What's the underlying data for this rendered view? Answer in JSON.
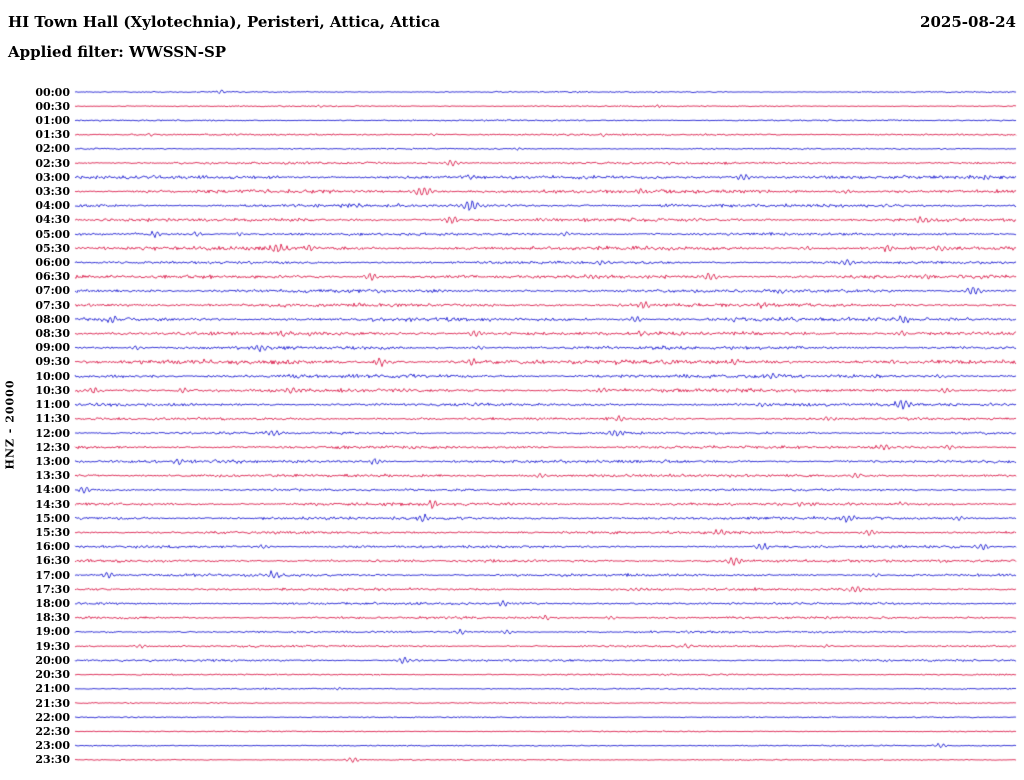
{
  "header": {
    "title": "HI Town Hall (Xylotechnia), Peristeri, Attica, Attica",
    "date": "2025-08-24",
    "filter": "Applied filter: WWSSN-SP"
  },
  "y_axis_label": "HNZ - 20000",
  "chart_data": {
    "type": "line",
    "subtype": "helicorder-seismogram",
    "title": "HI Town Hall (Xylotechnia), Peristeri, Attica, Attica",
    "date": "2025-08-24",
    "applied_filter": "WWSSN-SP",
    "station_channel": "HNZ",
    "scale": 20000,
    "row_interval_minutes": 30,
    "rows_count": 48,
    "grid": false,
    "background": "#ffffff",
    "trace_colors": {
      "blue": "#0000cc",
      "red": "#d60036"
    },
    "rows": [
      {
        "time": "00:00",
        "color": "blue",
        "noise": 0.5,
        "events": [
          [
            0.155,
            1.8,
            3
          ]
        ]
      },
      {
        "time": "00:30",
        "color": "red",
        "noise": 0.5,
        "events": [
          [
            0.26,
            1.4,
            3
          ],
          [
            0.62,
            1.2,
            3
          ]
        ]
      },
      {
        "time": "01:00",
        "color": "blue",
        "noise": 0.55,
        "events": []
      },
      {
        "time": "01:30",
        "color": "red",
        "noise": 0.7,
        "events": [
          [
            0.08,
            1.4,
            3
          ],
          [
            0.38,
            1.5,
            3
          ],
          [
            0.56,
            1.2,
            3
          ]
        ]
      },
      {
        "time": "02:00",
        "color": "blue",
        "noise": 0.6,
        "events": [
          [
            0.47,
            1.2,
            3
          ]
        ]
      },
      {
        "time": "02:30",
        "color": "red",
        "noise": 0.9,
        "events": [
          [
            0.4,
            2.8,
            5
          ],
          [
            0.63,
            1.5,
            3
          ]
        ]
      },
      {
        "time": "03:00",
        "color": "blue",
        "noise": 1.3,
        "events": [
          [
            0.71,
            2.8,
            5
          ],
          [
            0.97,
            2.0,
            4
          ],
          [
            0.42,
            1.5,
            3
          ]
        ]
      },
      {
        "time": "03:30",
        "color": "red",
        "noise": 1.3,
        "events": [
          [
            0.37,
            4.2,
            7
          ],
          [
            0.6,
            2.4,
            4
          ],
          [
            0.82,
            2.4,
            4
          ]
        ]
      },
      {
        "time": "04:00",
        "color": "blue",
        "noise": 1.2,
        "events": [
          [
            0.42,
            4.8,
            7
          ],
          [
            0.3,
            2.0,
            4
          ],
          [
            0.86,
            1.6,
            3
          ]
        ]
      },
      {
        "time": "04:30",
        "color": "red",
        "noise": 1.2,
        "events": [
          [
            0.4,
            3.4,
            6
          ],
          [
            0.9,
            3.4,
            5
          ],
          [
            0.14,
            2.0,
            4
          ],
          [
            0.66,
            1.8,
            3
          ]
        ]
      },
      {
        "time": "05:00",
        "color": "blue",
        "noise": 1.0,
        "events": [
          [
            0.085,
            3.0,
            4
          ],
          [
            0.13,
            2.4,
            4
          ],
          [
            0.175,
            2.0,
            3
          ],
          [
            0.52,
            2.0,
            4
          ]
        ]
      },
      {
        "time": "05:30",
        "color": "red",
        "noise": 1.4,
        "events": [
          [
            0.215,
            3.4,
            5
          ],
          [
            0.25,
            2.4,
            4
          ],
          [
            0.865,
            3.0,
            5
          ],
          [
            0.92,
            3.0,
            5
          ],
          [
            0.78,
            2.0,
            4
          ]
        ]
      },
      {
        "time": "06:00",
        "color": "blue",
        "noise": 1.0,
        "events": [
          [
            0.82,
            3.0,
            5
          ],
          [
            0.56,
            1.8,
            4
          ]
        ]
      },
      {
        "time": "06:30",
        "color": "red",
        "noise": 1.3,
        "events": [
          [
            0.315,
            3.4,
            5
          ],
          [
            0.55,
            2.4,
            5
          ],
          [
            0.675,
            3.0,
            5
          ],
          [
            0.9,
            2.0,
            4
          ]
        ]
      },
      {
        "time": "07:00",
        "color": "blue",
        "noise": 1.2,
        "events": [
          [
            0.955,
            3.8,
            6
          ],
          [
            0.75,
            2.4,
            4
          ],
          [
            0.32,
            1.8,
            4
          ]
        ]
      },
      {
        "time": "07:30",
        "color": "red",
        "noise": 1.3,
        "events": [
          [
            0.605,
            3.0,
            5
          ],
          [
            0.73,
            2.4,
            4
          ],
          [
            0.3,
            1.8,
            4
          ]
        ]
      },
      {
        "time": "08:00",
        "color": "blue",
        "noise": 1.4,
        "events": [
          [
            0.04,
            3.4,
            5
          ],
          [
            0.595,
            3.0,
            5
          ],
          [
            0.88,
            3.0,
            5
          ],
          [
            0.7,
            2.0,
            4
          ]
        ]
      },
      {
        "time": "08:30",
        "color": "red",
        "noise": 1.4,
        "events": [
          [
            0.425,
            3.0,
            5
          ],
          [
            0.22,
            2.4,
            4
          ],
          [
            0.88,
            2.4,
            4
          ],
          [
            0.6,
            2.0,
            4
          ]
        ]
      },
      {
        "time": "09:00",
        "color": "blue",
        "noise": 1.2,
        "events": [
          [
            0.065,
            2.4,
            4
          ],
          [
            0.2,
            3.0,
            5
          ],
          [
            0.43,
            1.8,
            4
          ]
        ]
      },
      {
        "time": "09:30",
        "color": "red",
        "noise": 1.6,
        "events": [
          [
            0.325,
            3.4,
            5
          ],
          [
            0.42,
            3.0,
            5
          ],
          [
            0.625,
            2.4,
            4
          ],
          [
            0.7,
            2.4,
            4
          ],
          [
            0.87,
            2.0,
            4
          ]
        ]
      },
      {
        "time": "10:00",
        "color": "blue",
        "noise": 1.3,
        "events": [
          [
            0.74,
            2.0,
            4
          ],
          [
            0.92,
            1.8,
            4
          ]
        ]
      },
      {
        "time": "10:30",
        "color": "red",
        "noise": 1.3,
        "events": [
          [
            0.02,
            3.0,
            4
          ],
          [
            0.115,
            2.4,
            4
          ],
          [
            0.23,
            3.0,
            5
          ],
          [
            0.56,
            2.4,
            4
          ],
          [
            0.925,
            2.4,
            4
          ]
        ]
      },
      {
        "time": "11:00",
        "color": "blue",
        "noise": 1.1,
        "events": [
          [
            0.73,
            2.4,
            4
          ],
          [
            0.88,
            3.8,
            6
          ]
        ]
      },
      {
        "time": "11:30",
        "color": "red",
        "noise": 1.0,
        "events": [
          [
            0.58,
            2.4,
            4
          ],
          [
            0.8,
            1.8,
            4
          ]
        ]
      },
      {
        "time": "12:00",
        "color": "blue",
        "noise": 1.0,
        "events": [
          [
            0.21,
            3.0,
            5
          ],
          [
            0.575,
            3.0,
            5
          ]
        ]
      },
      {
        "time": "12:30",
        "color": "red",
        "noise": 1.1,
        "events": [
          [
            0.86,
            3.0,
            5
          ],
          [
            0.93,
            2.4,
            4
          ]
        ]
      },
      {
        "time": "13:00",
        "color": "blue",
        "noise": 1.1,
        "events": [
          [
            0.11,
            2.4,
            4
          ],
          [
            0.32,
            3.0,
            5
          ]
        ]
      },
      {
        "time": "13:30",
        "color": "red",
        "noise": 1.1,
        "events": [
          [
            0.495,
            2.4,
            4
          ],
          [
            0.83,
            2.4,
            4
          ]
        ]
      },
      {
        "time": "14:00",
        "color": "blue",
        "noise": 0.9,
        "events": [
          [
            0.01,
            3.0,
            4
          ],
          [
            0.21,
            1.4,
            3
          ]
        ]
      },
      {
        "time": "14:30",
        "color": "red",
        "noise": 1.1,
        "events": [
          [
            0.38,
            3.4,
            5
          ],
          [
            0.77,
            2.4,
            4
          ],
          [
            0.88,
            2.0,
            4
          ]
        ]
      },
      {
        "time": "15:00",
        "color": "blue",
        "noise": 1.1,
        "events": [
          [
            0.37,
            3.0,
            5
          ],
          [
            0.82,
            3.0,
            5
          ],
          [
            0.94,
            2.4,
            4
          ]
        ]
      },
      {
        "time": "15:30",
        "color": "red",
        "noise": 1.0,
        "events": [
          [
            0.685,
            3.0,
            5
          ],
          [
            0.845,
            3.0,
            5
          ]
        ]
      },
      {
        "time": "16:00",
        "color": "blue",
        "noise": 1.0,
        "events": [
          [
            0.73,
            3.4,
            5
          ],
          [
            0.965,
            3.0,
            5
          ],
          [
            0.2,
            1.8,
            4
          ]
        ]
      },
      {
        "time": "16:30",
        "color": "red",
        "noise": 1.0,
        "events": [
          [
            0.7,
            4.2,
            6
          ]
        ]
      },
      {
        "time": "17:00",
        "color": "blue",
        "noise": 1.0,
        "events": [
          [
            0.035,
            3.0,
            4
          ],
          [
            0.21,
            3.4,
            5
          ],
          [
            0.85,
            1.8,
            4
          ]
        ]
      },
      {
        "time": "17:30",
        "color": "red",
        "noise": 1.0,
        "events": [
          [
            0.83,
            3.0,
            5
          ],
          [
            0.6,
            1.8,
            4
          ]
        ]
      },
      {
        "time": "18:00",
        "color": "blue",
        "noise": 0.9,
        "events": [
          [
            0.455,
            2.4,
            4
          ]
        ]
      },
      {
        "time": "18:30",
        "color": "red",
        "noise": 0.9,
        "events": [
          [
            0.5,
            2.4,
            4
          ],
          [
            0.57,
            2.0,
            4
          ],
          [
            0.8,
            1.8,
            4
          ]
        ]
      },
      {
        "time": "19:00",
        "color": "blue",
        "noise": 0.8,
        "events": [
          [
            0.41,
            2.4,
            4
          ],
          [
            0.46,
            2.0,
            4
          ],
          [
            0.65,
            1.4,
            3
          ]
        ]
      },
      {
        "time": "19:30",
        "color": "red",
        "noise": 0.8,
        "events": [
          [
            0.07,
            2.0,
            4
          ],
          [
            0.65,
            2.0,
            4
          ],
          [
            0.8,
            1.4,
            3
          ]
        ]
      },
      {
        "time": "20:00",
        "color": "blue",
        "noise": 0.8,
        "events": [
          [
            0.35,
            3.0,
            5
          ]
        ]
      },
      {
        "time": "20:30",
        "color": "red",
        "noise": 0.6,
        "events": []
      },
      {
        "time": "21:00",
        "color": "blue",
        "noise": 0.6,
        "events": [
          [
            0.28,
            1.4,
            3
          ]
        ]
      },
      {
        "time": "21:30",
        "color": "red",
        "noise": 0.5,
        "events": []
      },
      {
        "time": "22:00",
        "color": "blue",
        "noise": 0.5,
        "events": []
      },
      {
        "time": "22:30",
        "color": "red",
        "noise": 0.45,
        "events": []
      },
      {
        "time": "23:00",
        "color": "blue",
        "noise": 0.5,
        "events": [
          [
            0.92,
            2.4,
            4
          ]
        ]
      },
      {
        "time": "23:30",
        "color": "red",
        "noise": 0.5,
        "events": [
          [
            0.295,
            2.4,
            5
          ]
        ]
      }
    ]
  }
}
